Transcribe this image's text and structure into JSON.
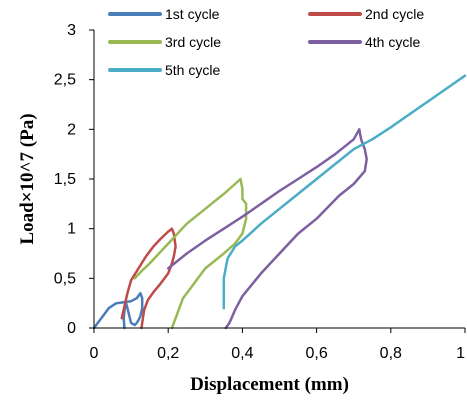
{
  "chart_data": {
    "type": "line",
    "title": "",
    "xlabel": "Displacement (mm)",
    "ylabel": "Load×10^7 (Pa)",
    "xlim": [
      0,
      1
    ],
    "ylim": [
      0,
      3
    ],
    "x_ticks": [
      0,
      0.2,
      0.4,
      0.6,
      0.8,
      1
    ],
    "x_tick_labels": [
      "0",
      "0,2",
      "0,4",
      "0,6",
      "0,8",
      "1"
    ],
    "y_ticks": [
      0,
      0.5,
      1,
      1.5,
      2,
      2.5,
      3
    ],
    "y_tick_labels": [
      "0",
      "0,5",
      "1",
      "1,5",
      "2",
      "2,5",
      "3"
    ],
    "grid": false,
    "legend_position": "top",
    "series": [
      {
        "name": "1st cycle",
        "color": "#4a7ebb",
        "x": [
          0,
          0.01,
          0.02,
          0.03,
          0.04,
          0.06,
          0.08,
          0.1,
          0.115,
          0.125,
          0.13,
          0.13,
          0.125,
          0.12,
          0.115,
          0.11,
          0.1,
          0.09,
          0.085,
          0.08,
          0.082
        ],
        "y": [
          0,
          0.05,
          0.1,
          0.15,
          0.2,
          0.25,
          0.26,
          0.27,
          0.3,
          0.35,
          0.3,
          0.2,
          0.12,
          0.08,
          0.05,
          0.03,
          0.05,
          0.2,
          0.27,
          0.1,
          0
        ]
      },
      {
        "name": "2nd cycle",
        "color": "#be4b48",
        "x": [
          0.075,
          0.09,
          0.1,
          0.12,
          0.14,
          0.16,
          0.18,
          0.2,
          0.21,
          0.215,
          0.22,
          0.215,
          0.21,
          0.2,
          0.18,
          0.16,
          0.145,
          0.135,
          0.13,
          0.128
        ],
        "y": [
          0.1,
          0.35,
          0.48,
          0.6,
          0.72,
          0.82,
          0.9,
          0.97,
          1.0,
          0.95,
          0.82,
          0.72,
          0.65,
          0.55,
          0.45,
          0.36,
          0.28,
          0.18,
          0.05,
          0
        ]
      },
      {
        "name": "3rd cycle",
        "color": "#98b954",
        "x": [
          0.11,
          0.13,
          0.15,
          0.2,
          0.25,
          0.3,
          0.35,
          0.38,
          0.395,
          0.4,
          0.4,
          0.41,
          0.41,
          0.4,
          0.38,
          0.35,
          0.3,
          0.28,
          0.26,
          0.24,
          0.225,
          0.215,
          0.21
        ],
        "y": [
          0.5,
          0.58,
          0.65,
          0.85,
          1.05,
          1.2,
          1.35,
          1.45,
          1.5,
          1.4,
          1.3,
          1.25,
          1.1,
          0.95,
          0.85,
          0.75,
          0.6,
          0.5,
          0.4,
          0.3,
          0.15,
          0.05,
          0
        ]
      },
      {
        "name": "4th cycle",
        "color": "#7d60a0",
        "x": [
          0.2,
          0.25,
          0.3,
          0.35,
          0.4,
          0.45,
          0.5,
          0.55,
          0.6,
          0.65,
          0.7,
          0.715,
          0.72,
          0.73,
          0.735,
          0.73,
          0.7,
          0.66,
          0.6,
          0.55,
          0.5,
          0.45,
          0.4,
          0.38,
          0.365,
          0.355
        ],
        "y": [
          0.6,
          0.75,
          0.88,
          1.0,
          1.12,
          1.25,
          1.38,
          1.5,
          1.62,
          1.75,
          1.9,
          2.0,
          1.9,
          1.8,
          1.7,
          1.58,
          1.45,
          1.33,
          1.1,
          0.95,
          0.75,
          0.55,
          0.32,
          0.18,
          0.05,
          0
        ]
      },
      {
        "name": "5th cycle",
        "color": "#4bacc6",
        "x": [
          0.35,
          0.35,
          0.36,
          0.38,
          0.4,
          0.45,
          0.5,
          0.55,
          0.6,
          0.65,
          0.7,
          0.75,
          0.8,
          0.85,
          0.9,
          0.95,
          1.0
        ],
        "y": [
          0.2,
          0.5,
          0.7,
          0.82,
          0.88,
          1.05,
          1.2,
          1.35,
          1.5,
          1.65,
          1.8,
          1.9,
          2.02,
          2.15,
          2.28,
          2.41,
          2.54
        ]
      }
    ]
  }
}
